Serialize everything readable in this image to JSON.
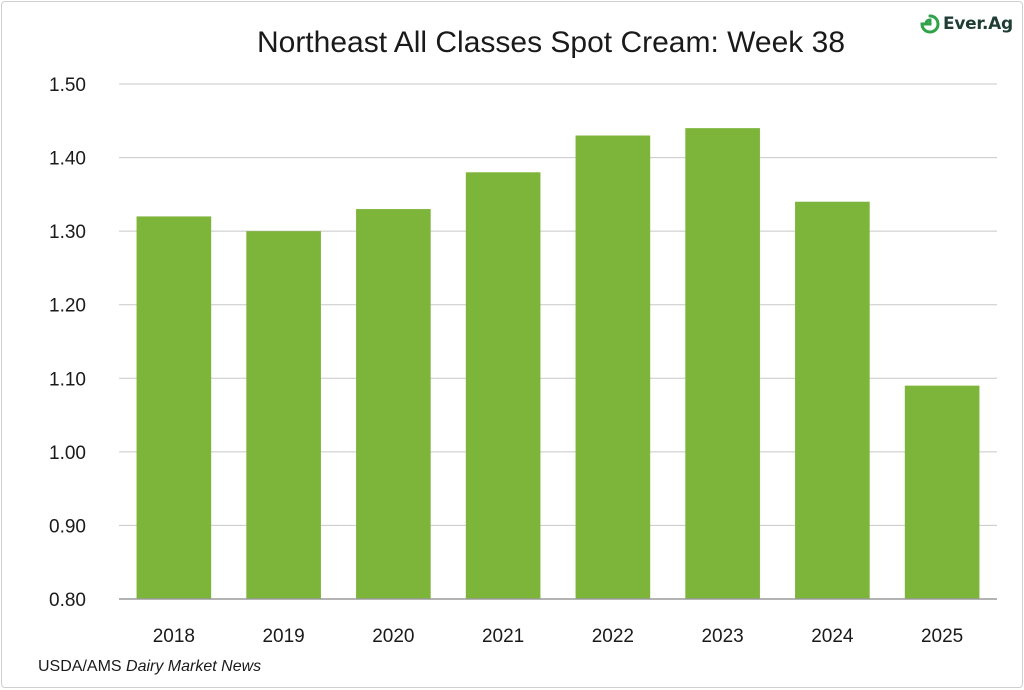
{
  "title": "Northeast All Classes Spot Cream: Week 38",
  "logo": {
    "text": "Ever.Ag",
    "icon": "ever-ag-leaf-icon"
  },
  "source": {
    "prefix": "USDA/AMS ",
    "publication": "Dairy Market News"
  },
  "colors": {
    "bar": "#7db53b",
    "grid": "#c8c8c8",
    "axis": "#9a9a9a",
    "logo": "#2fa24a"
  },
  "chart_data": {
    "type": "bar",
    "title": "Northeast All Classes Spot Cream: Week 38",
    "categories": [
      "2018",
      "2019",
      "2020",
      "2021",
      "2022",
      "2023",
      "2024",
      "2025"
    ],
    "values": [
      1.32,
      1.3,
      1.33,
      1.38,
      1.43,
      1.44,
      1.34,
      1.09
    ],
    "ylim": [
      0.8,
      1.5
    ],
    "yticks": [
      "0.80",
      "0.90",
      "1.00",
      "1.10",
      "1.20",
      "1.30",
      "1.40",
      "1.50"
    ],
    "xlabel": "",
    "ylabel": "",
    "grid": true,
    "legend": "none"
  }
}
